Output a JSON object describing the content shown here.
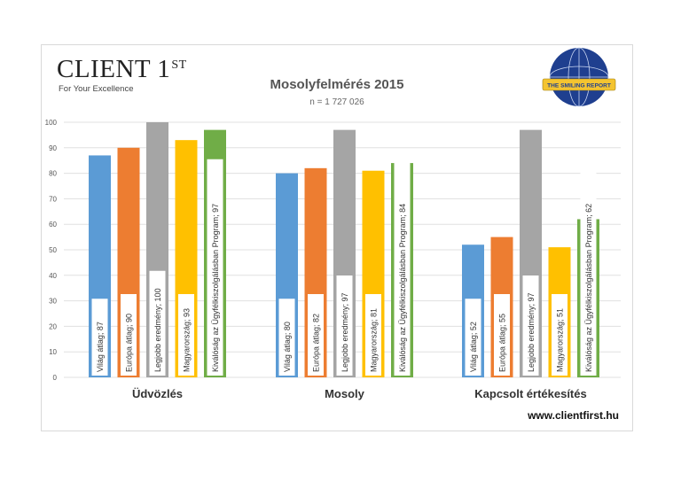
{
  "logo": {
    "name": "CLIENT 1",
    "superscript": "ST",
    "tagline": "For Your Excellence"
  },
  "badge": {
    "name": "globe-badge-icon",
    "text": "THE SMILING REPORT"
  },
  "website": "www.clientfirst.hu",
  "colors": {
    "series": [
      "#5b9bd5",
      "#ed7d31",
      "#a5a5a5",
      "#ffc000",
      "#70ad47"
    ],
    "grid": "#e0e0e0",
    "axis_text": "#555555"
  },
  "chart_data": {
    "type": "bar",
    "title": "Mosolyfelmérés 2015",
    "subtitle": "n = 1 727 026",
    "categories": [
      "Üdvözlés",
      "Mosoly",
      "Kapcsolt értékesítés"
    ],
    "ylim": [
      0,
      100
    ],
    "yticks": [
      0,
      10,
      20,
      30,
      40,
      50,
      60,
      70,
      80,
      90,
      100
    ],
    "grid": true,
    "series": [
      {
        "name": "Világ átlag",
        "values": [
          87,
          80,
          52
        ]
      },
      {
        "name": "Európa átlag",
        "values": [
          90,
          82,
          55
        ]
      },
      {
        "name": "Legjobb eredmény",
        "values": [
          100,
          97,
          97
        ]
      },
      {
        "name": "Magyarország",
        "values": [
          93,
          81,
          51
        ]
      },
      {
        "name": "Kiválóság az Ügyfélkiszolgálásban Program",
        "values": [
          97,
          84,
          62
        ]
      }
    ]
  }
}
